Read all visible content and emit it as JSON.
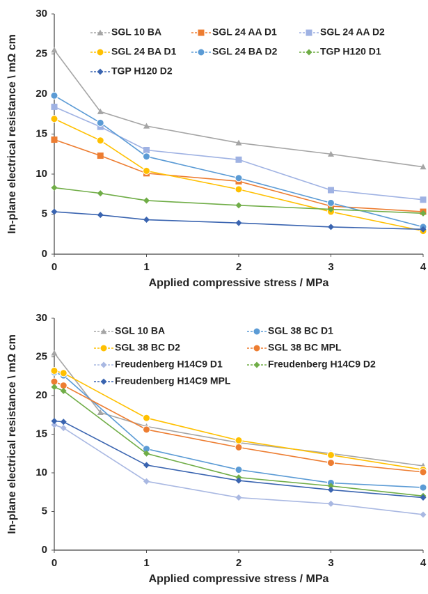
{
  "chart_data": [
    {
      "type": "line",
      "x_label": "Applied compressive stress / MPa",
      "y_label": "In-plane electrical resistance \\ mΩ cm",
      "xlim": [
        0,
        4
      ],
      "xticks": [
        0,
        1,
        2,
        3,
        4
      ],
      "ylim": [
        0,
        30
      ],
      "yticks": [
        0,
        5,
        10,
        15,
        20,
        25,
        30
      ],
      "legend_columns": 3,
      "series": [
        {
          "name": "SGL 10 BA",
          "color": "#a5a5a5",
          "marker": "triangle",
          "x": [
            0,
            0.5,
            1,
            2,
            3,
            4
          ],
          "values": [
            25.5,
            17.8,
            16.0,
            13.9,
            12.5,
            10.9
          ]
        },
        {
          "name": "SGL 24 AA D1",
          "color": "#ed7d31",
          "marker": "square",
          "x": [
            0,
            0.5,
            1,
            2,
            3,
            4
          ],
          "values": [
            14.3,
            12.3,
            10.1,
            9.1,
            6.0,
            5.3
          ]
        },
        {
          "name": "SGL 24 AA D2",
          "color": "#9fb2e3",
          "marker": "square",
          "x": [
            0,
            0.5,
            1,
            2,
            3,
            4
          ],
          "values": [
            18.4,
            15.9,
            13.0,
            11.8,
            8.0,
            6.8
          ]
        },
        {
          "name": "SGL 24 BA D1",
          "color": "#ffc000",
          "marker": "circle",
          "x": [
            0,
            0.5,
            1,
            2,
            3,
            4
          ],
          "values": [
            16.9,
            14.2,
            10.4,
            8.1,
            5.3,
            2.9
          ]
        },
        {
          "name": "SGL 24 BA D2",
          "color": "#5b9bd5",
          "marker": "circle",
          "x": [
            0,
            0.5,
            1,
            2,
            3,
            4
          ],
          "values": [
            19.8,
            16.4,
            12.2,
            9.5,
            6.4,
            3.4
          ]
        },
        {
          "name": "TGP H120 D1",
          "color": "#70ad47",
          "marker": "diamond",
          "x": [
            0,
            0.5,
            1,
            2,
            3,
            4
          ],
          "values": [
            8.3,
            7.6,
            6.7,
            6.1,
            5.6,
            5.1
          ]
        },
        {
          "name": "TGP H120 D2",
          "color": "#3a64b0",
          "marker": "diamond",
          "x": [
            0,
            0.5,
            1,
            2,
            3,
            4
          ],
          "values": [
            5.3,
            4.9,
            4.3,
            3.9,
            3.4,
            3.1
          ]
        }
      ]
    },
    {
      "type": "line",
      "x_label": "Applied compressive stress / MPa",
      "y_label": "In-plane electrical resistance \\ mΩ cm",
      "xlim": [
        0,
        4
      ],
      "xticks": [
        0,
        1,
        2,
        3,
        4
      ],
      "ylim": [
        0,
        30
      ],
      "yticks": [
        0,
        5,
        10,
        15,
        20,
        25,
        30
      ],
      "legend_columns": 2,
      "series": [
        {
          "name": "SGL 10 BA",
          "color": "#a5a5a5",
          "marker": "triangle",
          "x": [
            0,
            0.5,
            1,
            2,
            3,
            4
          ],
          "values": [
            25.5,
            17.8,
            16.0,
            13.9,
            12.5,
            10.9
          ]
        },
        {
          "name": "SGL 38 BC D1",
          "color": "#5b9bd5",
          "marker": "circle",
          "x": [
            0,
            0.1,
            1,
            2,
            3,
            4
          ],
          "values": [
            23.0,
            22.6,
            13.1,
            10.4,
            8.7,
            8.1
          ]
        },
        {
          "name": "SGL 38 BC D2",
          "color": "#ffc000",
          "marker": "circle",
          "x": [
            0,
            0.1,
            1,
            2,
            3,
            4
          ],
          "values": [
            23.2,
            22.9,
            17.1,
            14.2,
            12.3,
            10.4
          ]
        },
        {
          "name": "SGL 38 BC MPL",
          "color": "#ed7d31",
          "marker": "circle",
          "x": [
            0,
            0.1,
            1,
            2,
            3,
            4
          ],
          "values": [
            21.8,
            21.3,
            15.6,
            13.3,
            11.3,
            10.1
          ]
        },
        {
          "name": "Freudenberg H14C9 D1",
          "color": "#a9b8e2",
          "marker": "diamond",
          "x": [
            0,
            0.1,
            1,
            2,
            3,
            4
          ],
          "values": [
            16.2,
            15.8,
            8.9,
            6.8,
            6.0,
            4.6
          ]
        },
        {
          "name": "Freudenberg H14C9 D2",
          "color": "#70ad47",
          "marker": "diamond",
          "x": [
            0,
            0.1,
            1,
            2,
            3,
            4
          ],
          "values": [
            21.1,
            20.6,
            12.5,
            9.4,
            8.3,
            7.0
          ]
        },
        {
          "name": "Freudenberg H14C9 MPL",
          "color": "#3a64b0",
          "marker": "diamond",
          "x": [
            0,
            0.1,
            1,
            2,
            3,
            4
          ],
          "values": [
            16.7,
            16.6,
            11.0,
            9.0,
            7.8,
            6.8
          ]
        }
      ]
    }
  ]
}
